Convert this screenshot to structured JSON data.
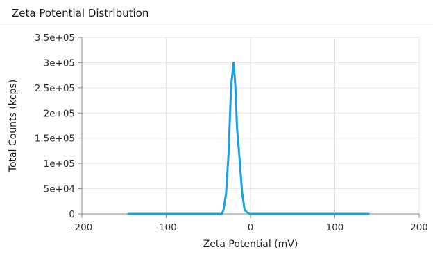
{
  "panel": {
    "title": "Zeta Potential Distribution"
  },
  "chart_data": {
    "type": "line",
    "title": "Zeta Potential Distribution",
    "xlabel": "Zeta Potential (mV)",
    "ylabel": "Total Counts (kcps)",
    "xlim": [
      -200,
      200
    ],
    "ylim": [
      0,
      350000
    ],
    "x_ticks": [
      -200,
      -100,
      0,
      100,
      200
    ],
    "x_tick_labels": [
      "-200",
      "-100",
      "0",
      "100",
      "200"
    ],
    "y_ticks": [
      0,
      50000,
      100000,
      150000,
      200000,
      250000,
      300000,
      350000
    ],
    "y_tick_labels": [
      "0",
      "5e+04",
      "1e+05",
      "1.5e+05",
      "2e+05",
      "2.5e+05",
      "3e+05",
      "3.5e+05"
    ],
    "grid": true,
    "series": [
      {
        "color": "#1ba1e2",
        "x": [
          -145,
          -34,
          -32,
          -29,
          -26,
          -23,
          -20,
          -18,
          -16,
          -13,
          -10,
          -7,
          -4,
          -1,
          0,
          140
        ],
        "y": [
          0,
          0,
          8000,
          40000,
          120000,
          255000,
          300000,
          255000,
          170000,
          110000,
          42000,
          8000,
          3000,
          0,
          0,
          0
        ]
      }
    ]
  }
}
